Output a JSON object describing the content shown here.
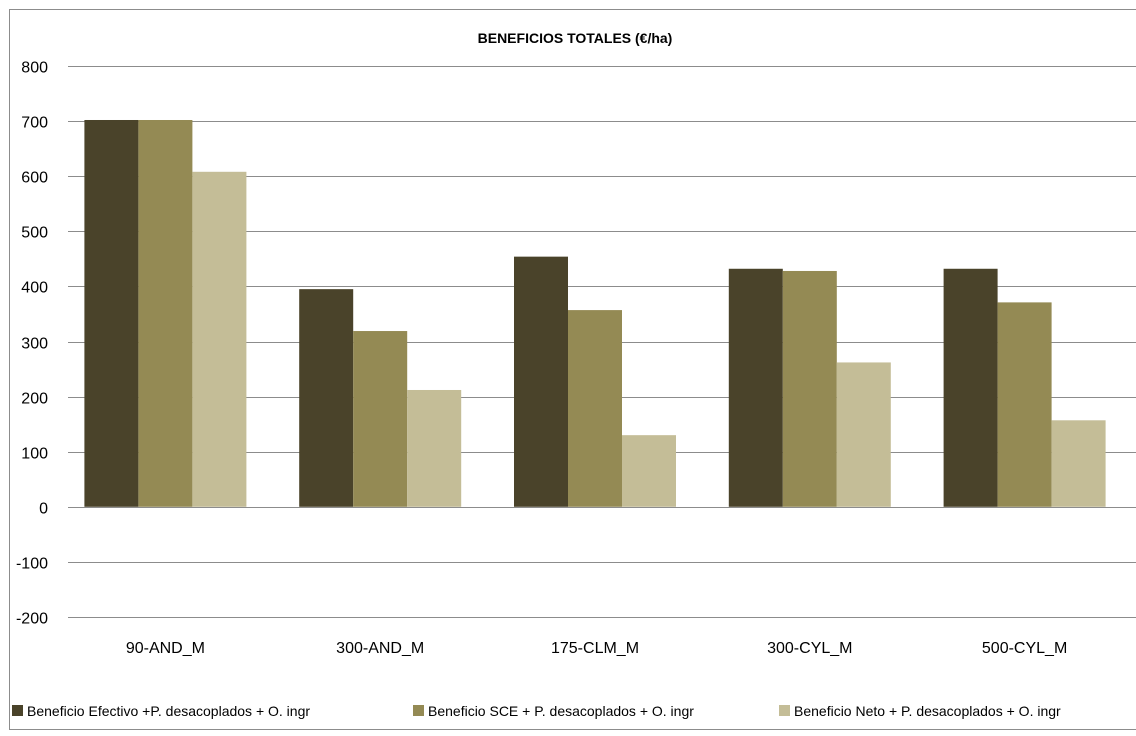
{
  "chart_data": {
    "type": "bar",
    "title": "BENEFICIOS TOTALES (€/ha)",
    "xlabel": "",
    "ylabel": "",
    "ylim": [
      -200,
      800
    ],
    "yticks": [
      800,
      700,
      600,
      500,
      400,
      300,
      200,
      100,
      0,
      -100,
      -200
    ],
    "grid": true,
    "legend_position": "bottom",
    "categories": [
      "90-AND_M",
      "300-AND_M",
      "175-CLM_M",
      "300-CYL_M",
      "500-CYL_M"
    ],
    "series": [
      {
        "name": "Beneficio Efectivo +P. desacoplados + O. ingr",
        "color": "#4a432a",
        "values": [
          702,
          395,
          454,
          432,
          432
        ]
      },
      {
        "name": "Beneficio SCE + P. desacoplados + O. ingr",
        "color": "#948a54",
        "values": [
          702,
          319,
          357,
          428,
          371
        ]
      },
      {
        "name": "Beneficio Neto + P. desacoplados + O. ingr",
        "color": "#c4bd97",
        "values": [
          608,
          212,
          130,
          262,
          157
        ]
      }
    ]
  }
}
